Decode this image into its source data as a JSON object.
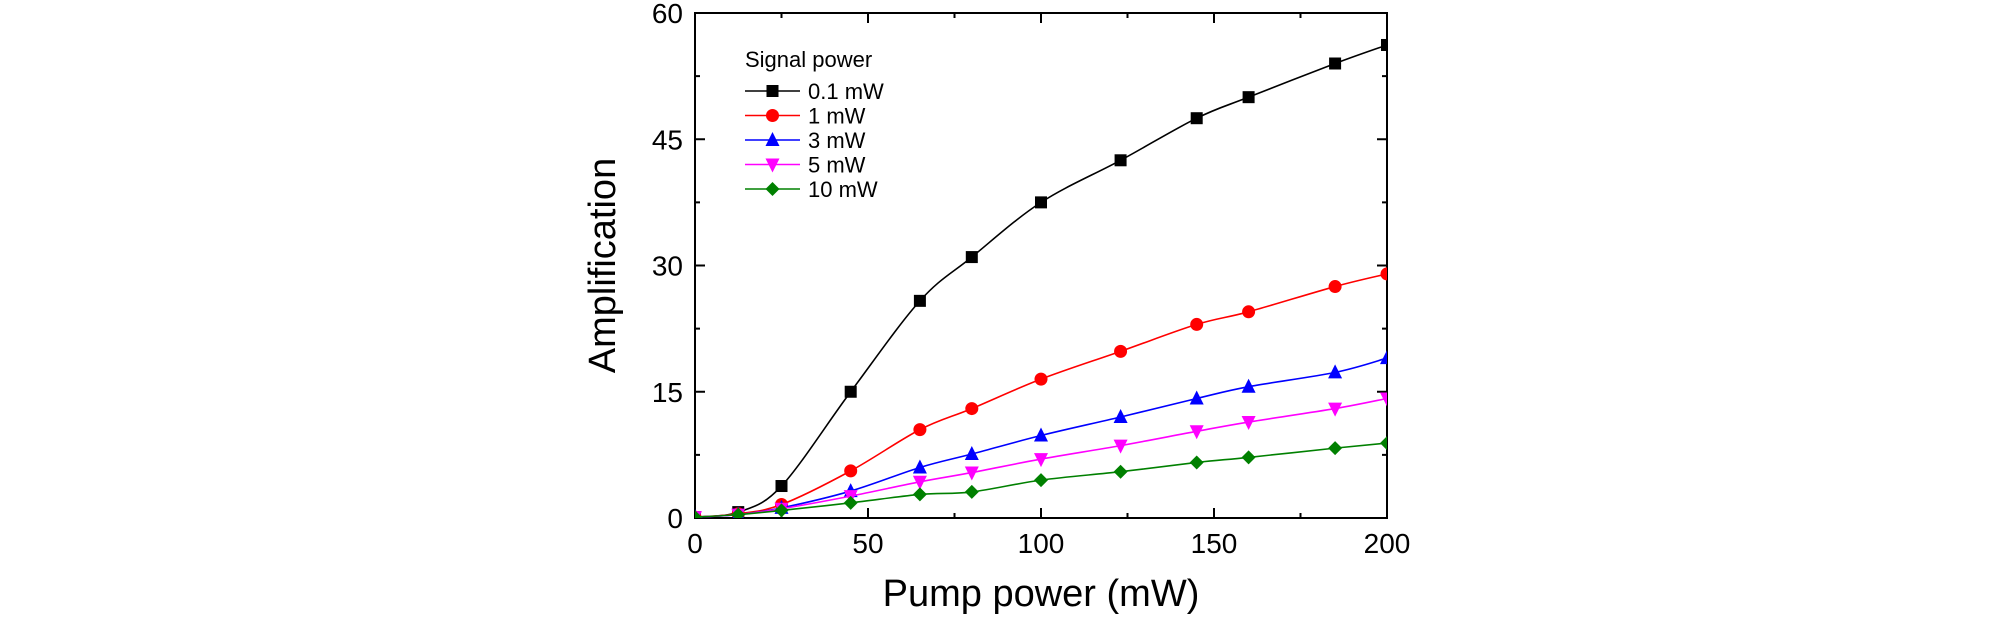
{
  "chart_data": {
    "type": "line",
    "title": "",
    "xlabel": "Pump power (mW)",
    "ylabel": "Amplification",
    "xlim": [
      0,
      200
    ],
    "ylim": [
      0,
      60
    ],
    "xticks": [
      0,
      50,
      100,
      150,
      200
    ],
    "yticks": [
      0,
      15,
      30,
      45,
      60
    ],
    "grid": false,
    "legend": {
      "title": "Signal power",
      "placement": "top-left"
    },
    "series": [
      {
        "name": "0.1 mW",
        "color": "#000000",
        "marker": "square",
        "x": [
          0,
          12.5,
          25,
          45,
          65,
          80,
          100,
          123,
          145,
          160,
          185,
          200
        ],
        "y": [
          0.1,
          0.7,
          3.8,
          15.0,
          25.8,
          31.0,
          37.5,
          42.5,
          47.5,
          50.0,
          54.0,
          56.2
        ]
      },
      {
        "name": "1 mW",
        "color": "#ff0000",
        "marker": "circle",
        "x": [
          0,
          12.5,
          25,
          45,
          65,
          80,
          100,
          123,
          145,
          160,
          185,
          200
        ],
        "y": [
          0.1,
          0.5,
          1.6,
          5.6,
          10.5,
          13.0,
          16.5,
          19.8,
          23.0,
          24.5,
          27.5,
          29.0
        ]
      },
      {
        "name": "3 mW",
        "color": "#0000ff",
        "marker": "triangle-up",
        "x": [
          0,
          12.5,
          25,
          45,
          65,
          80,
          100,
          123,
          145,
          160,
          185,
          200
        ],
        "y": [
          0.1,
          0.4,
          1.2,
          3.2,
          6.0,
          7.6,
          9.8,
          12.0,
          14.2,
          15.6,
          17.3,
          19.0
        ]
      },
      {
        "name": "5 mW",
        "color": "#ff00ff",
        "marker": "triangle-down",
        "x": [
          0,
          12.5,
          25,
          45,
          65,
          80,
          100,
          123,
          145,
          160,
          185,
          200
        ],
        "y": [
          0.1,
          0.4,
          1.1,
          2.6,
          4.3,
          5.4,
          7.0,
          8.6,
          10.3,
          11.4,
          13.0,
          14.2
        ]
      },
      {
        "name": "10 mW",
        "color": "#008000",
        "marker": "diamond",
        "x": [
          0,
          12.5,
          25,
          45,
          65,
          80,
          100,
          123,
          145,
          160,
          185,
          200
        ],
        "y": [
          0.1,
          0.4,
          0.9,
          1.8,
          2.8,
          3.1,
          4.5,
          5.5,
          6.6,
          7.2,
          8.3,
          8.9
        ]
      }
    ]
  }
}
